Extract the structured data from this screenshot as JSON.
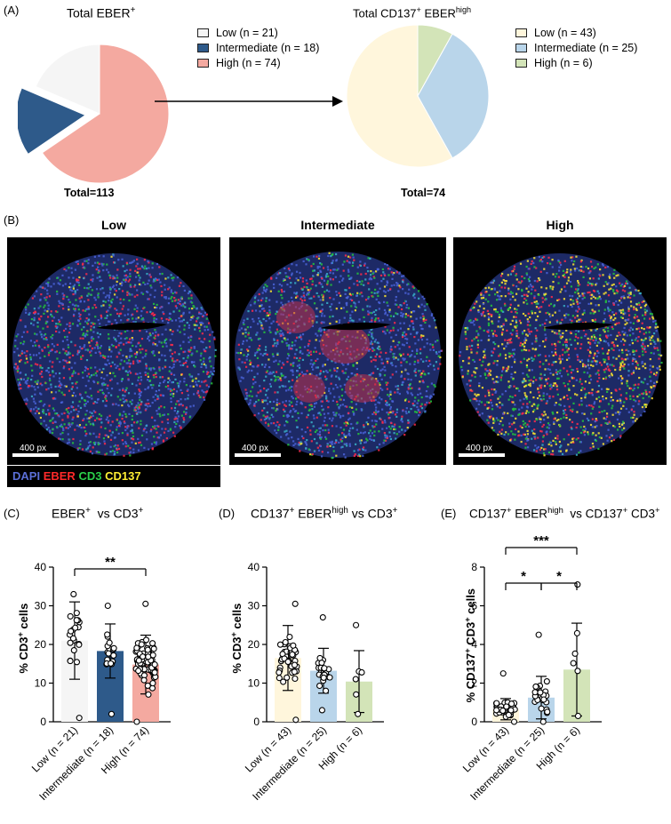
{
  "figure": {
    "panel_labels": {
      "a": "(A)",
      "b": "(B)",
      "c": "(C)",
      "d": "(D)",
      "e": "(E)"
    },
    "a": {
      "left_title_main": "Total EBER",
      "left_title_sup": "+",
      "left_total": "Total=113",
      "right_title_main": "Total CD137",
      "right_title_sup1": "+",
      "right_title_mid": " EBER",
      "right_title_sup2": "high",
      "right_total": "Total=74"
    },
    "b": {
      "titles": [
        "Low",
        "Intermediate",
        "High"
      ],
      "scale_label": "400 px",
      "channels": [
        {
          "label": "DAPI",
          "color": "#5b6fd6"
        },
        {
          "label": "EBER",
          "color": "#ff2a2a"
        },
        {
          "label": "CD3",
          "color": "#2bd14a"
        },
        {
          "label": "CD137",
          "color": "#ffee33"
        }
      ]
    },
    "c_title": {
      "main": "EBER",
      "sup": "+",
      "mid": "  vs CD3",
      "sup2": "+"
    },
    "d_title": {
      "main": "CD137",
      "sup": "+",
      "mid": " EBER",
      "sup2": "high",
      "end": " vs CD3",
      "sup3": "+"
    },
    "e_title": {
      "main": "CD137",
      "sup": "+",
      "mid": " EBER",
      "sup2": "high",
      "end": "  vs CD137",
      "sup3": "+",
      "end2": " CD3",
      "sup4": "+"
    }
  },
  "chart_data": [
    {
      "type": "pie",
      "id": "pie-left",
      "title": "Total EBER+",
      "slices": [
        {
          "label": "Low (n = 21)",
          "value": 21,
          "color": "#f5f5f5"
        },
        {
          "label": "Intermediate (n = 18)",
          "value": 18,
          "color": "#2e5a8a"
        },
        {
          "label": "High (n = 74)",
          "value": 74,
          "color": "#f4a9a0"
        }
      ],
      "exploded": [
        "Intermediate (n = 18)"
      ],
      "total_label": "Total=113",
      "legend": "right"
    },
    {
      "type": "pie",
      "id": "pie-right",
      "title": "Total CD137+ EBERhigh",
      "slices": [
        {
          "label": "Low (n = 43)",
          "value": 43,
          "color": "#fff6dc"
        },
        {
          "label": "Intermediate (n = 25)",
          "value": 25,
          "color": "#b9d5ea"
        },
        {
          "label": "High (n = 6)",
          "value": 6,
          "color": "#d3e4b8"
        }
      ],
      "total_label": "Total=74",
      "legend": "right"
    },
    {
      "type": "bar",
      "id": "chart-c",
      "title": "EBER+ vs CD3+",
      "ylabel": "% CD3+ cells",
      "ylim": [
        0,
        40
      ],
      "yticks": [
        0,
        10,
        20,
        30,
        40
      ],
      "categories": [
        "Low (n = 21)",
        "Intermediate (n = 18)",
        "High (n = 74)"
      ],
      "colors": [
        "#f5f5f5",
        "#2e5a8a",
        "#f4a9a0"
      ],
      "means": [
        21.0,
        18.3,
        14.8
      ],
      "sd": [
        10.0,
        7.0,
        7.6
      ],
      "n": [
        21,
        18,
        74
      ],
      "spread": [
        [
          1,
          33
        ],
        [
          2,
          30
        ],
        [
          0,
          30.5
        ]
      ],
      "significance": [
        {
          "from": 0,
          "to": 2,
          "label": "**"
        }
      ]
    },
    {
      "type": "bar",
      "id": "chart-d",
      "title": "CD137+ EBERhigh vs CD3+",
      "ylabel": "% CD3+ cells",
      "ylim": [
        0,
        40
      ],
      "yticks": [
        0,
        10,
        20,
        30,
        40
      ],
      "categories": [
        "Low (n = 43)",
        "Intermediate (n = 25)",
        "High (n = 6)"
      ],
      "colors": [
        "#fff6dc",
        "#b9d5ea",
        "#d3e4b8"
      ],
      "means": [
        16.5,
        13.2,
        10.4
      ],
      "sd": [
        8.4,
        5.8,
        8.0
      ],
      "n": [
        43,
        25,
        6
      ],
      "spread": [
        [
          0.5,
          30.5
        ],
        [
          3,
          27
        ],
        [
          2,
          25
        ]
      ],
      "significance": []
    },
    {
      "type": "bar",
      "id": "chart-e",
      "title": "CD137+ EBERhigh vs CD137+ CD3+",
      "ylabel": "% CD137+ CD3+ cells",
      "ylim": [
        0,
        8
      ],
      "yticks": [
        0,
        2,
        4,
        6,
        8
      ],
      "categories": [
        "Low (n = 43)",
        "Intermediate (n = 25)",
        "High (n = 6)"
      ],
      "colors": [
        "#fff6dc",
        "#b9d5ea",
        "#d3e4b8"
      ],
      "means": [
        0.65,
        1.25,
        2.7
      ],
      "sd": [
        0.55,
        1.1,
        2.4
      ],
      "n": [
        43,
        25,
        6
      ],
      "spread": [
        [
          0,
          2.5
        ],
        [
          0,
          4.5
        ],
        [
          0.3,
          7.1
        ]
      ],
      "significance": [
        {
          "from": 0,
          "to": 1,
          "label": "*"
        },
        {
          "from": 1,
          "to": 2,
          "label": "*"
        },
        {
          "from": 0,
          "to": 2,
          "label": "***"
        }
      ]
    }
  ]
}
